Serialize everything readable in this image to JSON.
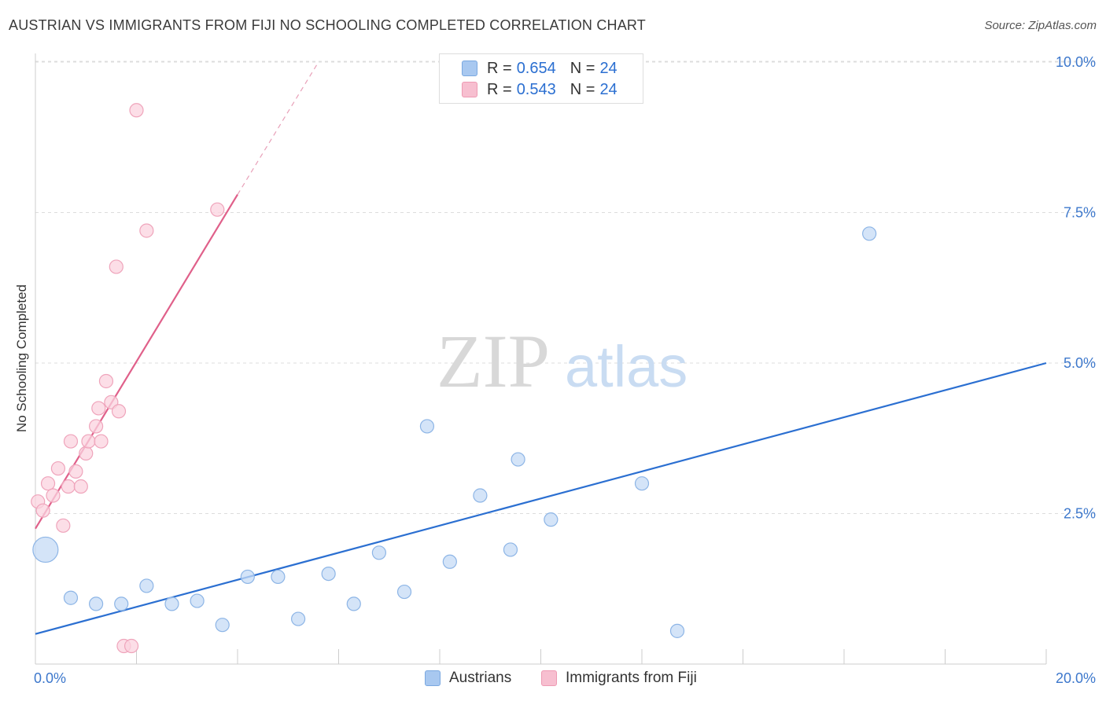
{
  "header": {
    "title": "AUSTRIAN VS IMMIGRANTS FROM FIJI NO SCHOOLING COMPLETED CORRELATION CHART",
    "source": "Source: ZipAtlas.com"
  },
  "watermark": {
    "part1": "ZIP",
    "part2": "atlas"
  },
  "legend": {
    "rows": [
      {
        "r_label": "R =",
        "r_value": "0.654",
        "n_label": "N =",
        "n_value": "24",
        "color": "#a8c8f0",
        "border": "#7aa8e0"
      },
      {
        "r_label": "R =",
        "r_value": "0.543",
        "n_label": "N =",
        "n_value": "24",
        "color": "#f7bfd0",
        "border": "#ee9ab3"
      }
    ]
  },
  "bottom_legend": {
    "items": [
      {
        "label": "Austrians",
        "color": "#a8c8f0",
        "border": "#7aa8e0"
      },
      {
        "label": "Immigrants from Fiji",
        "color": "#f7bfd0",
        "border": "#ee9ab3"
      }
    ]
  },
  "chart_data": {
    "type": "scatter",
    "title": "AUSTRIAN VS IMMIGRANTS FROM FIJI NO SCHOOLING COMPLETED CORRELATION CHART",
    "xlabel": "",
    "ylabel": "No Schooling Completed",
    "xlim": [
      0,
      20
    ],
    "ylim": [
      0,
      10
    ],
    "x_tick_labels": [
      "0.0%",
      "20.0%"
    ],
    "y_ticks": [
      2.5,
      5.0,
      7.5,
      10.0
    ],
    "y_tick_labels": [
      "2.5%",
      "5.0%",
      "7.5%",
      "10.0%"
    ],
    "grid": true,
    "series": [
      {
        "name": "Austrians",
        "color": "#2b6fd1",
        "fill": "#c5dbf5",
        "stroke": "#8db5e6",
        "points": [
          {
            "x": 0.2,
            "y": 1.9,
            "big": true
          },
          {
            "x": 0.7,
            "y": 1.1
          },
          {
            "x": 1.2,
            "y": 1.0
          },
          {
            "x": 1.7,
            "y": 1.0
          },
          {
            "x": 2.2,
            "y": 1.3
          },
          {
            "x": 2.7,
            "y": 1.0
          },
          {
            "x": 3.2,
            "y": 1.05
          },
          {
            "x": 3.7,
            "y": 0.65
          },
          {
            "x": 4.2,
            "y": 1.45
          },
          {
            "x": 4.8,
            "y": 1.45
          },
          {
            "x": 5.2,
            "y": 0.75
          },
          {
            "x": 5.8,
            "y": 1.5
          },
          {
            "x": 6.3,
            "y": 1.0
          },
          {
            "x": 6.8,
            "y": 1.85
          },
          {
            "x": 7.3,
            "y": 1.2
          },
          {
            "x": 7.75,
            "y": 3.95
          },
          {
            "x": 8.2,
            "y": 1.7
          },
          {
            "x": 8.8,
            "y": 2.8
          },
          {
            "x": 9.4,
            "y": 1.9
          },
          {
            "x": 9.55,
            "y": 3.4
          },
          {
            "x": 10.2,
            "y": 2.4
          },
          {
            "x": 12.0,
            "y": 3.0
          },
          {
            "x": 12.7,
            "y": 0.55
          },
          {
            "x": 16.5,
            "y": 7.15
          }
        ],
        "trend": {
          "x1": 0,
          "y1": 0.5,
          "x2": 20,
          "y2": 5.0
        }
      },
      {
        "name": "Immigrants from Fiji",
        "color": "#e0608a",
        "fill": "#fbd3df",
        "stroke": "#efa4bb",
        "points": [
          {
            "x": 0.05,
            "y": 2.7
          },
          {
            "x": 0.15,
            "y": 2.55
          },
          {
            "x": 0.25,
            "y": 3.0
          },
          {
            "x": 0.35,
            "y": 2.8
          },
          {
            "x": 0.45,
            "y": 3.25
          },
          {
            "x": 0.55,
            "y": 2.3
          },
          {
            "x": 0.65,
            "y": 2.95
          },
          {
            "x": 0.7,
            "y": 3.7
          },
          {
            "x": 0.8,
            "y": 3.2
          },
          {
            "x": 0.9,
            "y": 2.95
          },
          {
            "x": 1.0,
            "y": 3.5
          },
          {
            "x": 1.05,
            "y": 3.7
          },
          {
            "x": 1.2,
            "y": 3.95
          },
          {
            "x": 1.25,
            "y": 4.25
          },
          {
            "x": 1.3,
            "y": 3.7
          },
          {
            "x": 1.4,
            "y": 4.7
          },
          {
            "x": 1.5,
            "y": 4.35
          },
          {
            "x": 1.6,
            "y": 6.6
          },
          {
            "x": 1.65,
            "y": 4.2
          },
          {
            "x": 1.75,
            "y": 0.3
          },
          {
            "x": 1.9,
            "y": 0.3
          },
          {
            "x": 2.0,
            "y": 9.2
          },
          {
            "x": 2.2,
            "y": 7.2
          },
          {
            "x": 3.6,
            "y": 7.55
          }
        ],
        "trend": {
          "x1": 0,
          "y1": 2.25,
          "x2": 4.0,
          "y2": 7.8
        },
        "trend_dashed": {
          "x1": 4.0,
          "y1": 7.8,
          "x2": 5.6,
          "y2": 10.0
        }
      }
    ]
  }
}
